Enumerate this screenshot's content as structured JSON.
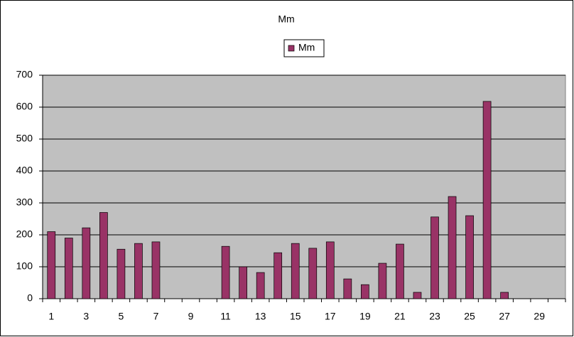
{
  "chart_data": {
    "type": "bar",
    "title": "Mm",
    "categories": [
      "1",
      null,
      "3",
      null,
      "5",
      null,
      "7",
      null,
      "9",
      null,
      "11",
      null,
      "13",
      null,
      "15",
      null,
      "17",
      null,
      "19",
      null,
      "21",
      null,
      "23",
      null,
      "25",
      null,
      "27",
      null,
      "29",
      null
    ],
    "series": [
      {
        "name": "Mm",
        "color": "#993366",
        "values": [
          210,
          190,
          222,
          270,
          155,
          173,
          178,
          null,
          null,
          null,
          164,
          100,
          82,
          144,
          173,
          158,
          178,
          62,
          44,
          111,
          171,
          20,
          256,
          320,
          260,
          618,
          20,
          null,
          null,
          null
        ]
      }
    ],
    "ylim": [
      0,
      700
    ],
    "yticks": [
      0,
      100,
      200,
      300,
      400,
      500,
      600,
      700
    ],
    "grid": true,
    "plot_background": "#c0c0c0",
    "legend": "top"
  }
}
